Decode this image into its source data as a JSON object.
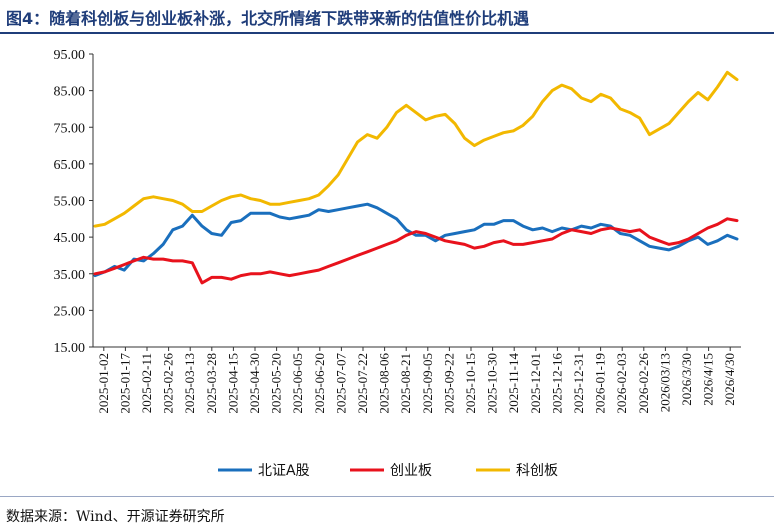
{
  "header": {
    "title": "图4：随着科创板与创业板补涨，北交所情绪下跌带来新的估值性价比机遇"
  },
  "footer": {
    "source": "数据来源：Wind、开源证券研究所"
  },
  "chart_data": {
    "type": "line",
    "title": "图4：随着科创板与创业板补涨，北交所情绪下跌带来新的估值性价比机遇",
    "xlabel": "",
    "ylabel": "",
    "ylim": [
      15,
      95
    ],
    "yticks": [
      "15.00",
      "25.00",
      "35.00",
      "45.00",
      "55.00",
      "65.00",
      "75.00",
      "85.00",
      "95.00"
    ],
    "grid": false,
    "legend_position": "bottom",
    "x_tick_labels": [
      "2025-01-02",
      "2025-01-17",
      "2025-02-11",
      "2025-02-26",
      "2025-03-13",
      "2025-03-28",
      "2025-04-15",
      "2025-04-30",
      "2025-05-20",
      "2025-06-05",
      "2025-06-20",
      "2025-07-07",
      "2025-07-22",
      "2025-08-06",
      "2025-08-21",
      "2025-09-05",
      "2025-09-22",
      "2025-10-15",
      "2025-10-30",
      "2025-11-14",
      "2025-12-01",
      "2025-12-16",
      "2025-12-31",
      "2026-01-19",
      "2026-02-03",
      "2026-02-26",
      "2026/03/13",
      "2026/3/30",
      "2026/4/15",
      "2026/4/30"
    ],
    "series": [
      {
        "name": "北证A股",
        "color": "#1a6fbd",
        "values": [
          34.5,
          35.5,
          37.0,
          36.0,
          39.0,
          38.5,
          40.5,
          43.0,
          47.0,
          48.0,
          51.0,
          48.0,
          46.0,
          45.5,
          49.0,
          49.5,
          51.5,
          51.5,
          51.5,
          50.5,
          50.0,
          50.5,
          51.0,
          52.5,
          52.0,
          52.5,
          53.0,
          53.5,
          54.0,
          53.0,
          51.5,
          50.0,
          47.0,
          45.5,
          45.5,
          44.0,
          45.5,
          46.0,
          46.5,
          47.0,
          48.5,
          48.5,
          49.5,
          49.5,
          48.0,
          47.0,
          47.5,
          46.5,
          47.5,
          47.0,
          48.0,
          47.5,
          48.5,
          48.0,
          46.0,
          45.5,
          44.0,
          42.5,
          42.0,
          41.5,
          42.5,
          44.0,
          45.0,
          43.0,
          44.0,
          45.5,
          44.5
        ]
      },
      {
        "name": "创业板",
        "color": "#e8121c",
        "values": [
          35.0,
          35.5,
          36.5,
          37.5,
          38.5,
          39.5,
          39.0,
          39.0,
          38.5,
          38.5,
          38.0,
          32.5,
          34.0,
          34.0,
          33.5,
          34.5,
          35.0,
          35.0,
          35.5,
          35.0,
          34.5,
          35.0,
          35.5,
          36.0,
          37.0,
          38.0,
          39.0,
          40.0,
          41.0,
          42.0,
          43.0,
          44.0,
          45.5,
          46.5,
          46.0,
          45.0,
          44.0,
          43.5,
          43.0,
          42.0,
          42.5,
          43.5,
          44.0,
          43.0,
          43.0,
          43.5,
          44.0,
          44.5,
          46.0,
          47.0,
          46.5,
          46.0,
          47.0,
          47.5,
          47.0,
          46.5,
          47.0,
          45.0,
          44.0,
          43.0,
          43.5,
          44.5,
          46.0,
          47.5,
          48.5,
          50.0,
          49.5
        ]
      },
      {
        "name": "科创板",
        "color": "#f2b800",
        "values": [
          48.0,
          48.5,
          50.0,
          51.5,
          53.5,
          55.5,
          56.0,
          55.5,
          55.0,
          54.0,
          52.0,
          52.0,
          53.5,
          55.0,
          56.0,
          56.5,
          55.5,
          55.0,
          54.0,
          54.0,
          54.5,
          55.0,
          55.5,
          56.5,
          59.0,
          62.0,
          66.5,
          71.0,
          73.0,
          72.0,
          75.0,
          79.0,
          81.0,
          79.0,
          77.0,
          78.0,
          78.5,
          76.0,
          72.0,
          70.0,
          71.5,
          72.5,
          73.5,
          74.0,
          75.5,
          78.0,
          82.0,
          85.0,
          86.5,
          85.5,
          83.0,
          82.0,
          84.0,
          83.0,
          80.0,
          79.0,
          77.5,
          73.0,
          74.5,
          76.0,
          79.0,
          82.0,
          84.5,
          82.5,
          86.0,
          90.0,
          88.0
        ]
      }
    ]
  }
}
